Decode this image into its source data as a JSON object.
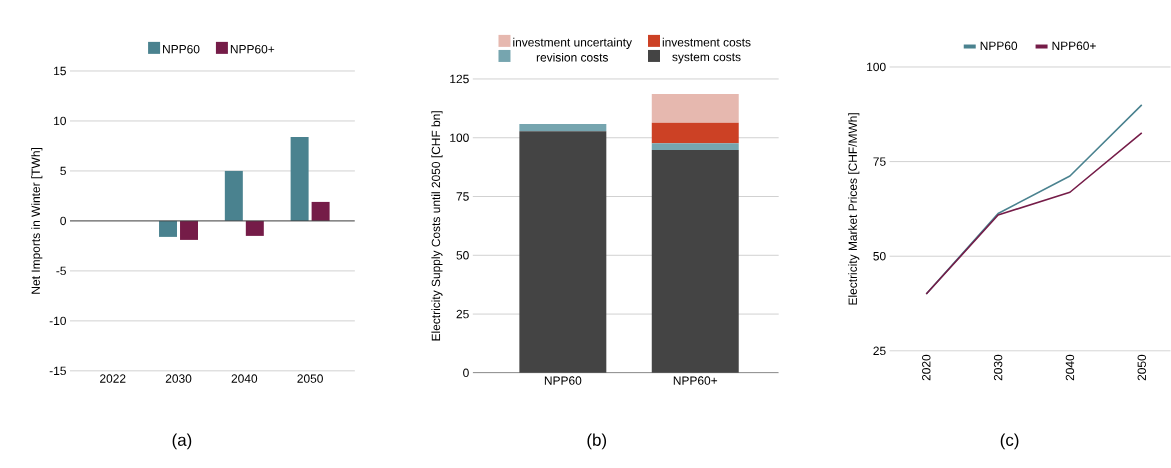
{
  "chart_data": [
    {
      "type": "bar",
      "ylabel": "Net Imports in Winter [TWh]",
      "categories": [
        "2022",
        "2030",
        "2040",
        "2050"
      ],
      "series": [
        {
          "name": "NPP60",
          "color": "#4a828f",
          "values": [
            null,
            -1.6,
            5.0,
            8.4
          ]
        },
        {
          "name": "NPP60+",
          "color": "#751c48",
          "values": [
            null,
            -1.9,
            -1.5,
            1.9
          ]
        }
      ],
      "ylim": [
        -15,
        15
      ],
      "yticks": [
        -15,
        -10,
        -5,
        0,
        5,
        10,
        15
      ],
      "grid": "y",
      "legend": "top",
      "annotations": [
        "(a)"
      ]
    },
    {
      "type": "bar",
      "stacked": true,
      "ylabel": "Electricity Supply Costs until 2050 [CHF bn]",
      "categories": [
        "NPP60",
        "NPP60+"
      ],
      "series": [
        {
          "name": "system costs",
          "color": "#444444",
          "values": [
            102.8,
            94.8
          ]
        },
        {
          "name": "revision costs",
          "color": "#76a5af",
          "values": [
            3.0,
            2.9
          ]
        },
        {
          "name": "investment costs",
          "color": "#cc4125",
          "values": [
            null,
            8.7
          ]
        },
        {
          "name": "investment uncertainty",
          "color": "#e6b8af",
          "values": [
            null,
            12.2
          ]
        }
      ],
      "ylim": [
        0,
        125
      ],
      "yticks": [
        0,
        25,
        50,
        75,
        100,
        125
      ],
      "grid": "y",
      "legend": "top",
      "annotations": [
        "(b)"
      ]
    },
    {
      "type": "line",
      "ylabel": "Electricity Market Prices [CHF/MWh]",
      "categories": [
        "2020",
        "2030",
        "2040",
        "2050"
      ],
      "series": [
        {
          "name": "NPP60",
          "color": "#4a828f",
          "values": [
            40,
            61.3,
            71.2,
            90.0
          ]
        },
        {
          "name": "NPP60+",
          "color": "#751c48",
          "values": [
            40,
            60.9,
            66.9,
            82.6
          ]
        }
      ],
      "ylim": [
        25,
        100
      ],
      "yticks": [
        25,
        50,
        75,
        100
      ],
      "grid": "y",
      "legend": "top",
      "marker": "none",
      "line_style": "solid",
      "annotations": [
        "(c)"
      ]
    }
  ]
}
